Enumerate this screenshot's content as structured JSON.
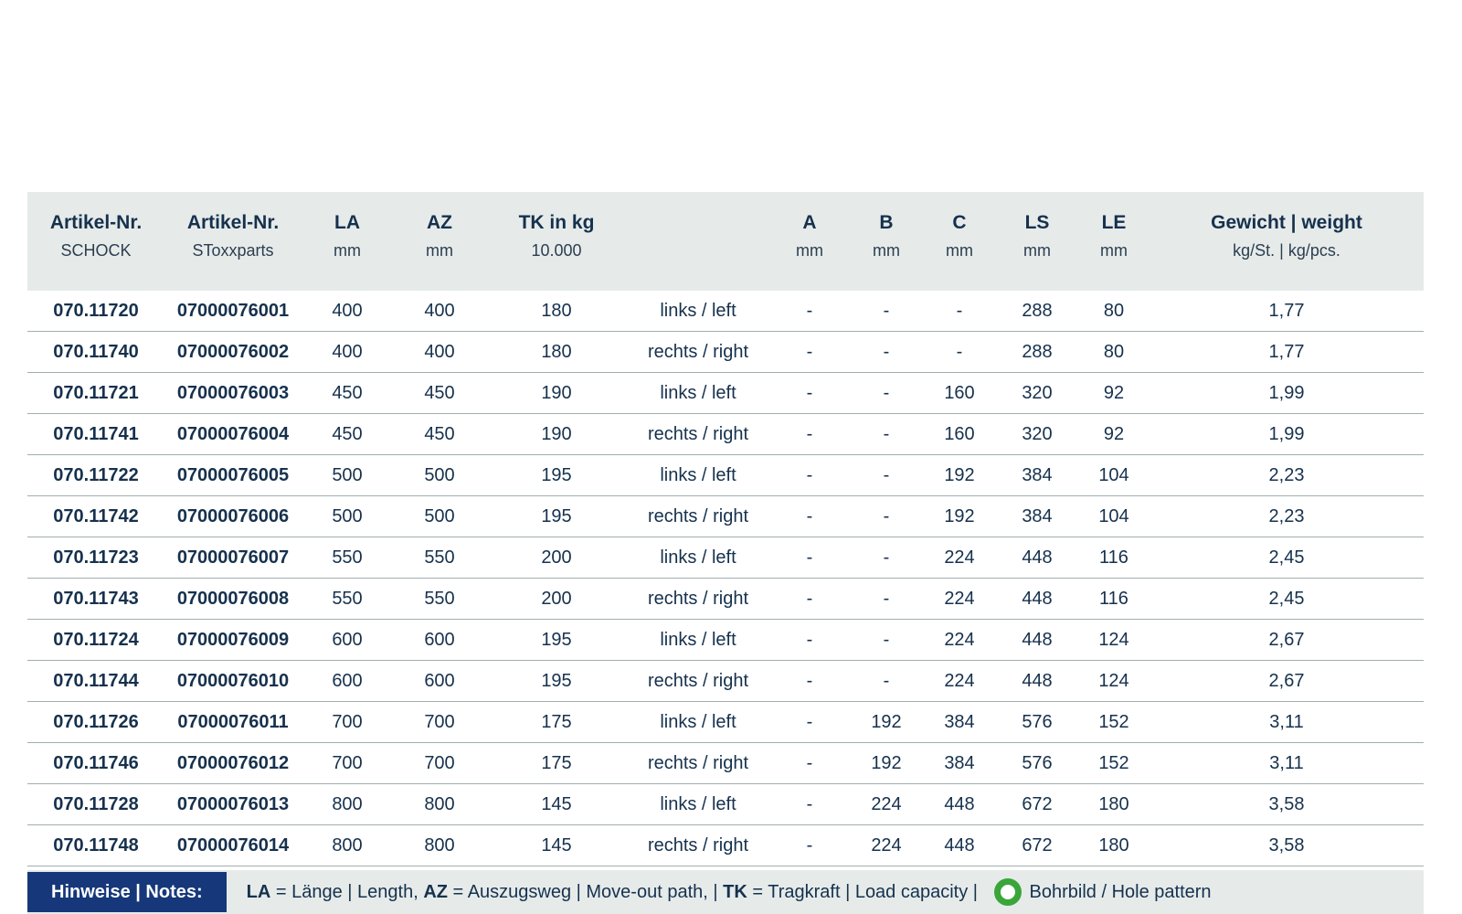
{
  "table": {
    "columns": [
      {
        "key": "artikel_schock",
        "label": "Artikel-Nr.",
        "sub": "SCHOCK",
        "bold": true
      },
      {
        "key": "artikel_stoxxparts",
        "label": "Artikel-Nr.",
        "sub": "SToxxparts",
        "bold": true
      },
      {
        "key": "la",
        "label": "LA",
        "sub": "mm",
        "bold": false
      },
      {
        "key": "az",
        "label": "AZ",
        "sub": "mm",
        "bold": false
      },
      {
        "key": "tk",
        "label": "TK in kg",
        "sub": "10.000",
        "bold": false
      },
      {
        "key": "direction",
        "label": "",
        "sub": "",
        "bold": false
      },
      {
        "key": "a",
        "label": "A",
        "sub": "mm",
        "bold": false
      },
      {
        "key": "b",
        "label": "B",
        "sub": "mm",
        "bold": false
      },
      {
        "key": "c",
        "label": "C",
        "sub": "mm",
        "bold": false
      },
      {
        "key": "ls",
        "label": "LS",
        "sub": "mm",
        "bold": false
      },
      {
        "key": "le",
        "label": "LE",
        "sub": "mm",
        "bold": false
      },
      {
        "key": "gewicht",
        "label": "Gewicht | weight",
        "sub": "kg/St. | kg/pcs.",
        "bold": false
      }
    ],
    "rows": [
      [
        "070.11720",
        "07000076001",
        "400",
        "400",
        "180",
        "links / left",
        "-",
        "-",
        "-",
        "288",
        "80",
        "1,77"
      ],
      [
        "070.11740",
        "07000076002",
        "400",
        "400",
        "180",
        "rechts / right",
        "-",
        "-",
        "-",
        "288",
        "80",
        "1,77"
      ],
      [
        "070.11721",
        "07000076003",
        "450",
        "450",
        "190",
        "links / left",
        "-",
        "-",
        "160",
        "320",
        "92",
        "1,99"
      ],
      [
        "070.11741",
        "07000076004",
        "450",
        "450",
        "190",
        "rechts / right",
        "-",
        "-",
        "160",
        "320",
        "92",
        "1,99"
      ],
      [
        "070.11722",
        "07000076005",
        "500",
        "500",
        "195",
        "links / left",
        "-",
        "-",
        "192",
        "384",
        "104",
        "2,23"
      ],
      [
        "070.11742",
        "07000076006",
        "500",
        "500",
        "195",
        "rechts / right",
        "-",
        "-",
        "192",
        "384",
        "104",
        "2,23"
      ],
      [
        "070.11723",
        "07000076007",
        "550",
        "550",
        "200",
        "links / left",
        "-",
        "-",
        "224",
        "448",
        "116",
        "2,45"
      ],
      [
        "070.11743",
        "07000076008",
        "550",
        "550",
        "200",
        "rechts / right",
        "-",
        "-",
        "224",
        "448",
        "116",
        "2,45"
      ],
      [
        "070.11724",
        "07000076009",
        "600",
        "600",
        "195",
        "links / left",
        "-",
        "-",
        "224",
        "448",
        "124",
        "2,67"
      ],
      [
        "070.11744",
        "07000076010",
        "600",
        "600",
        "195",
        "rechts / right",
        "-",
        "-",
        "224",
        "448",
        "124",
        "2,67"
      ],
      [
        "070.11726",
        "07000076011",
        "700",
        "700",
        "175",
        "links / left",
        "-",
        "192",
        "384",
        "576",
        "152",
        "3,11"
      ],
      [
        "070.11746",
        "07000076012",
        "700",
        "700",
        "175",
        "rechts / right",
        "-",
        "192",
        "384",
        "576",
        "152",
        "3,11"
      ],
      [
        "070.11728",
        "07000076013",
        "800",
        "800",
        "145",
        "links / left",
        "-",
        "224",
        "448",
        "672",
        "180",
        "3,58"
      ],
      [
        "070.11748",
        "07000076014",
        "800",
        "800",
        "145",
        "rechts / right",
        "-",
        "224",
        "448",
        "672",
        "180",
        "3,58"
      ]
    ]
  },
  "footer": {
    "label": "Hinweise | Notes:",
    "notes": [
      {
        "abbr": "LA",
        "text": " = Länge | Length, "
      },
      {
        "abbr": "AZ",
        "text": " = Auszugsweg | Move-out path, | "
      },
      {
        "abbr": "TK",
        "text": " = Tragkraft | Load capacity | "
      }
    ],
    "hole_pattern_icon": "green-ring-icon",
    "hole_pattern_label": "Bohrbild / Hole pattern"
  },
  "colors": {
    "header_band": "#e6ebea",
    "text_navy": "#16314d",
    "notes_box_navy": "#16387a",
    "row_divider": "#a3adad",
    "hole_pattern_green": "#3aa63a"
  }
}
